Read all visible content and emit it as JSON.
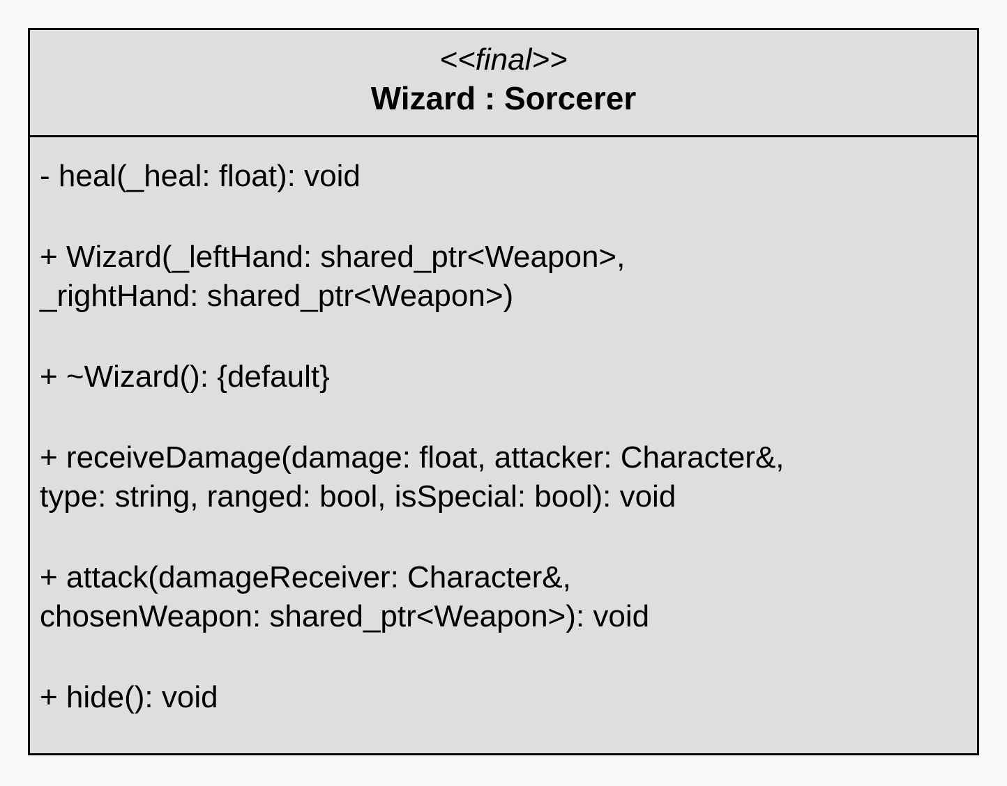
{
  "uml_class": {
    "stereotype": "<<final>>",
    "name": "Wizard : Sorcerer",
    "operations": [
      {
        "line1": "- heal(_heal: float): void",
        "line2": ""
      },
      {
        "line1": "+ Wizard(_leftHand: shared_ptr<Weapon>,",
        "line2": "_rightHand: shared_ptr<Weapon>)"
      },
      {
        "line1": "+ ~Wizard(): {default}",
        "line2": ""
      },
      {
        "line1": "+ receiveDamage(damage: float, attacker: Character&,",
        "line2": "type: string, ranged: bool, isSpecial: bool): void"
      },
      {
        "line1": "+ attack(damageReceiver: Character&,",
        "line2": "chosenWeapon: shared_ptr<Weapon>): void"
      },
      {
        "line1": "+ hide(): void",
        "line2": ""
      }
    ]
  },
  "colors": {
    "background": "#f8f8f8",
    "class_fill": "#dedede",
    "border": "#000000",
    "text": "#000000"
  }
}
